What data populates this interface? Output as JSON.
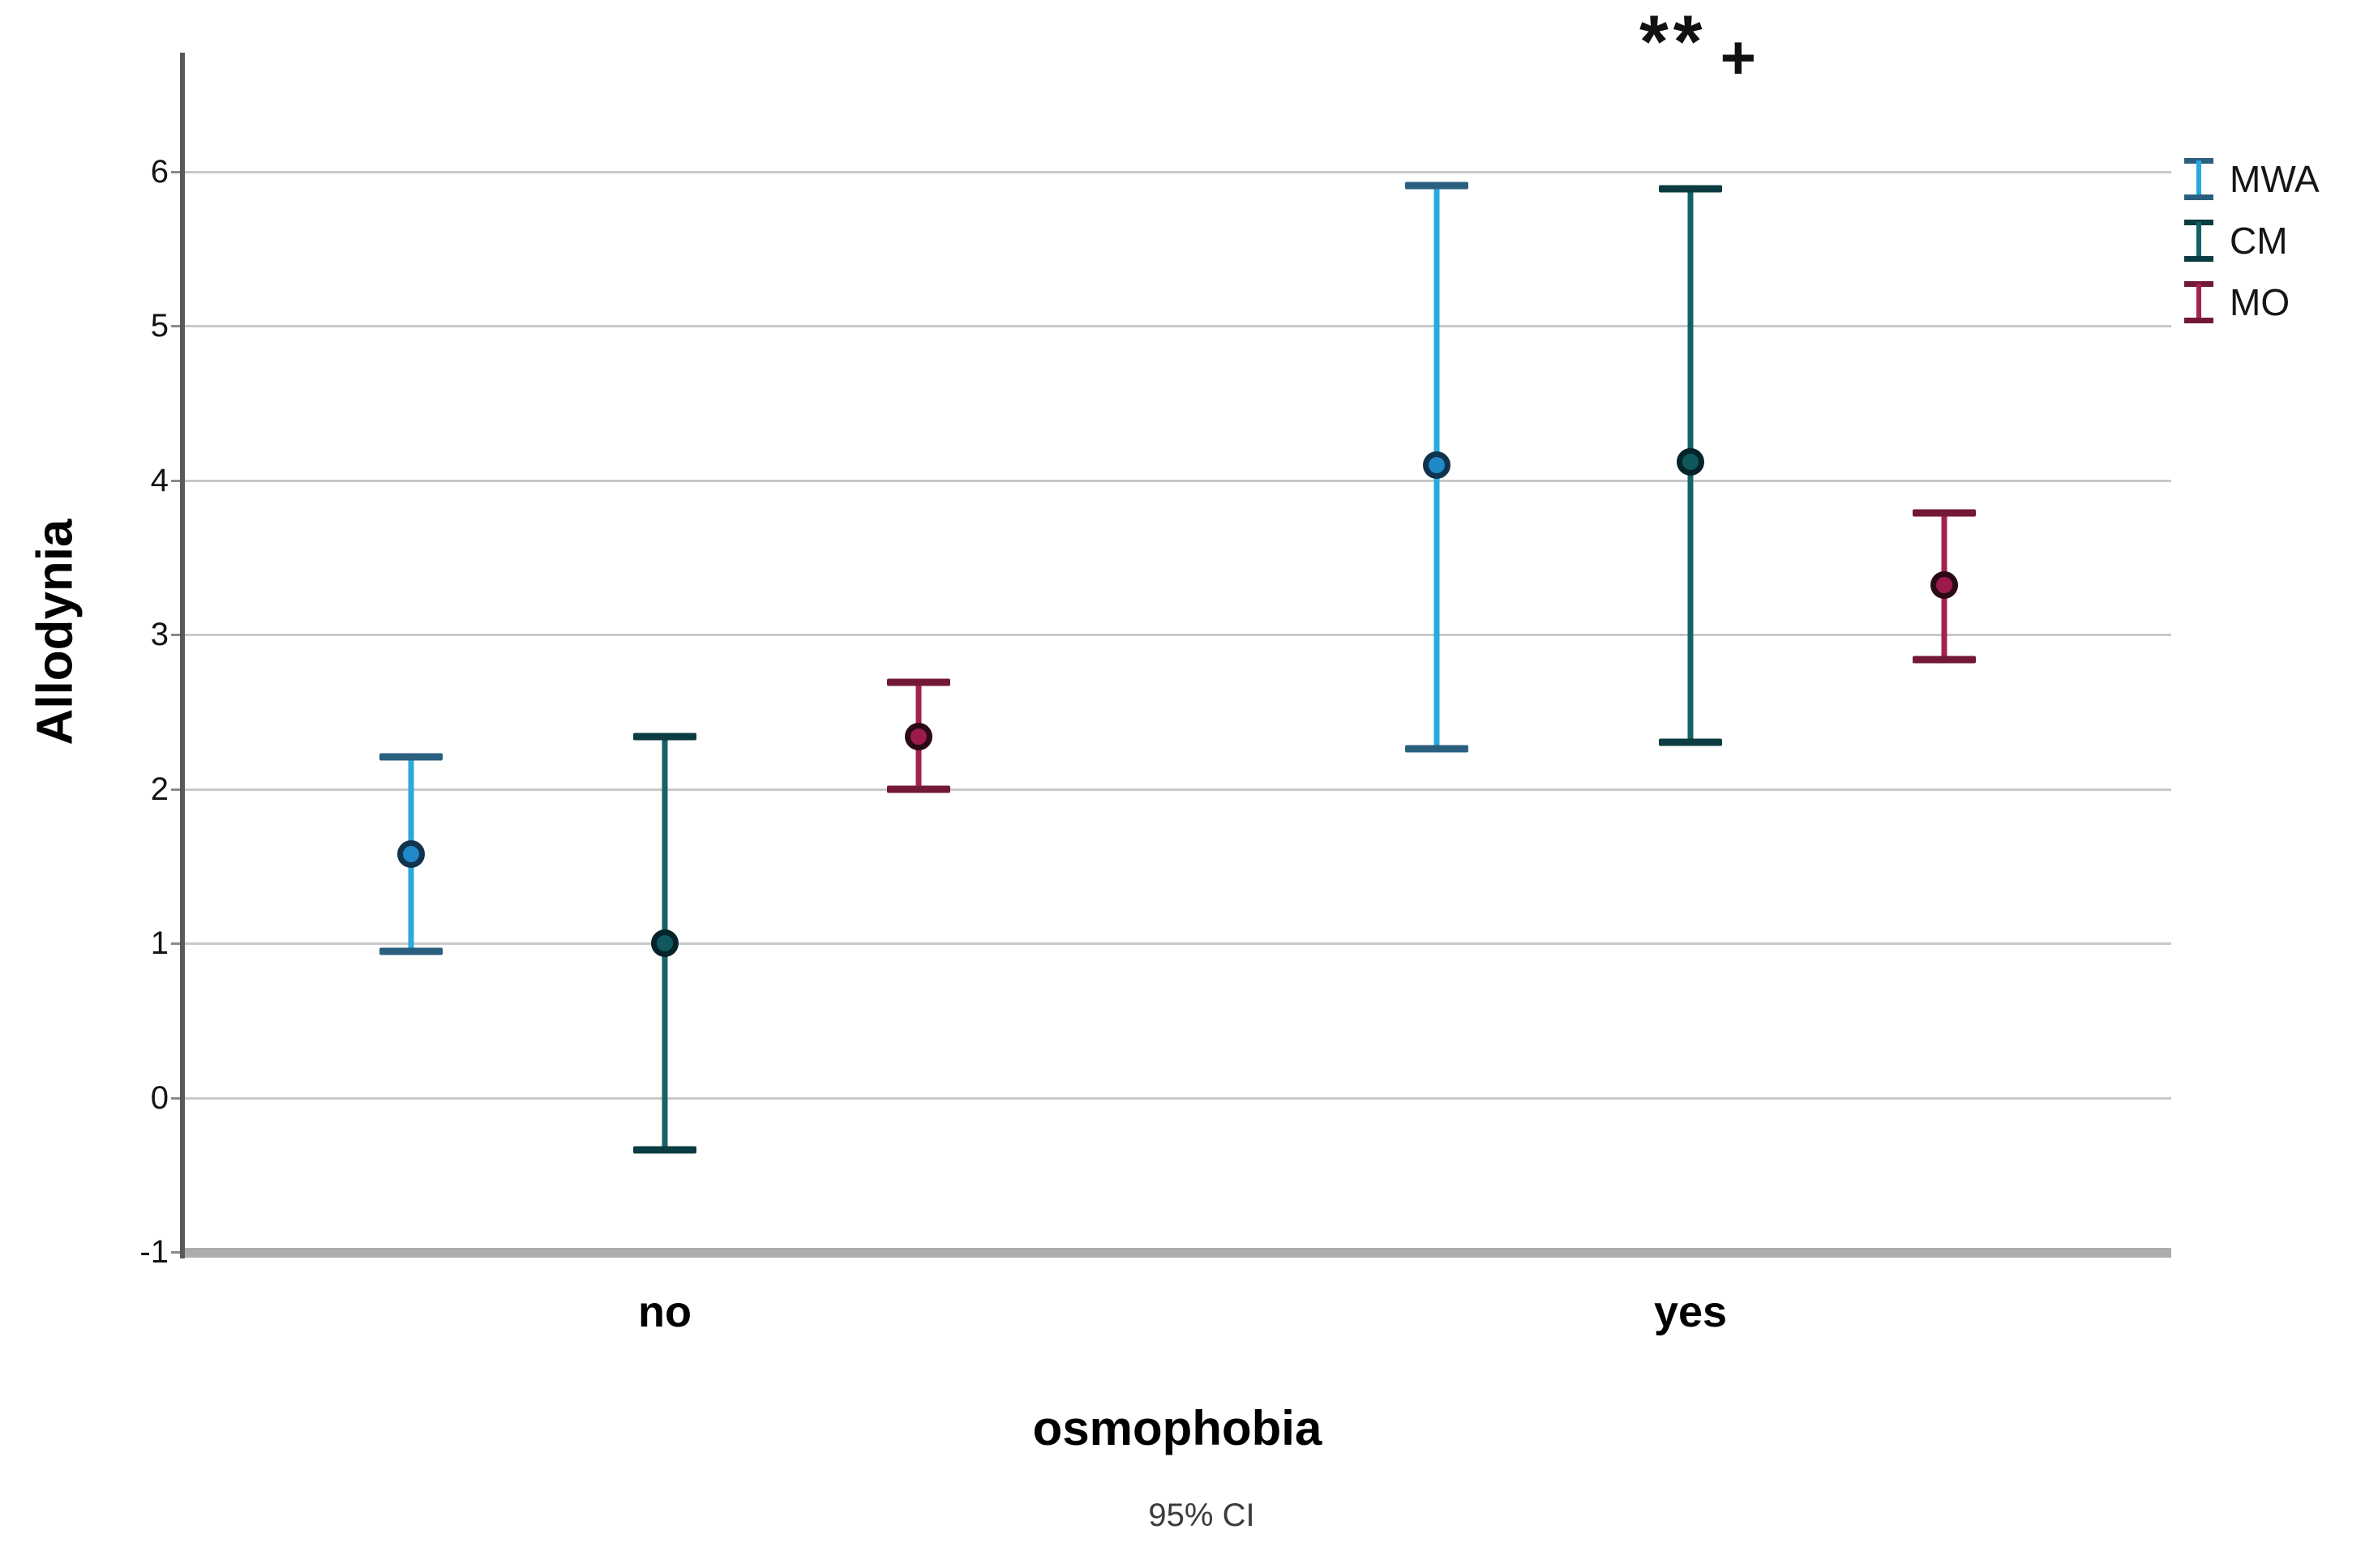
{
  "figure": {
    "y_axis_title": "Allodynia",
    "x_axis_title": "osmophobia",
    "footer": "95% CI",
    "annotation_stars": "**",
    "annotation_plus": "+"
  },
  "legend": {
    "position": "top-right",
    "items": [
      "MWA",
      "CM",
      "MO"
    ]
  },
  "chart_data": {
    "type": "errorbar",
    "title": "",
    "xlabel": "osmophobia",
    "ylabel": "Allodynia",
    "caption": "95% CI",
    "categories": [
      "no",
      "yes"
    ],
    "ylim": [
      -1,
      6.77
    ],
    "yticks": [
      6,
      5,
      4,
      3,
      2,
      1,
      0,
      -1
    ],
    "grid": true,
    "legend_position": "top-right",
    "annotation": "** +",
    "annotation_location": "above 'yes' group",
    "series": [
      {
        "name": "MWA",
        "stem_color": "#29a9df",
        "cap_color": "#2b5f80",
        "marker_fill": "#1f89c9",
        "marker_stroke": "#10344e",
        "points": [
          {
            "category": "no",
            "mean": 1.58,
            "ci_low": 0.95,
            "ci_high": 2.21
          },
          {
            "category": "yes",
            "mean": 4.1,
            "ci_low": 2.26,
            "ci_high": 5.91
          }
        ]
      },
      {
        "name": "CM",
        "stem_color": "#156266",
        "cap_color": "#0a3c41",
        "marker_fill": "#0f585e",
        "marker_stroke": "#05242a",
        "points": [
          {
            "category": "no",
            "mean": 1.0,
            "ci_low": -0.34,
            "ci_high": 2.34
          },
          {
            "category": "yes",
            "mean": 4.12,
            "ci_low": 2.3,
            "ci_high": 5.89
          }
        ]
      },
      {
        "name": "MO",
        "stem_color": "#a32350",
        "cap_color": "#731838",
        "marker_fill": "#9c1a49",
        "marker_stroke": "#2b0a18",
        "points": [
          {
            "category": "no",
            "mean": 2.34,
            "ci_low": 2.0,
            "ci_high": 2.69
          },
          {
            "category": "yes",
            "mean": 3.32,
            "ci_low": 2.84,
            "ci_high": 3.79
          }
        ]
      }
    ]
  }
}
